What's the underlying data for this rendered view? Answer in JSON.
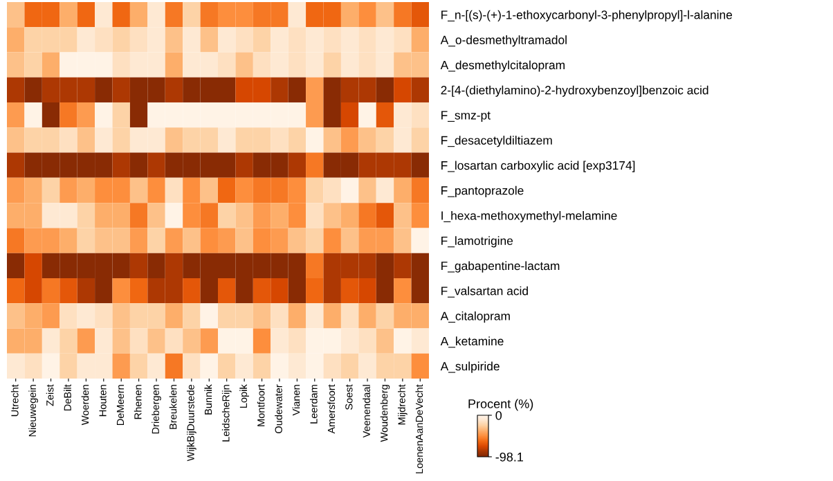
{
  "chart_data": {
    "type": "heatmap",
    "categories": [
      "Utrecht",
      "Nieuwegein",
      "Zeist",
      "DeBilt",
      "Woerden",
      "Houten",
      "DeMeern",
      "Rhenen",
      "Driebergen",
      "Breukelen",
      "WijkBijDuurstede",
      "Bunnik",
      "LeidscheRijn",
      "Lopik",
      "Montfoort",
      "Oudewater",
      "Vianen",
      "Leerdam",
      "Amersfoort",
      "Soest",
      "Veenendaal",
      "Woudenberg",
      "Mijdrecht",
      "LoenenAanDeVecht"
    ],
    "y_categories": [
      "F_n-[(s)-(+)-1-ethoxycarbonyl-3-phenylpropyl]-l-alanine",
      "A_o-desmethyltramadol",
      "A_desmethylcitalopram",
      "2-[4-(diethylamino)-2-hydroxybenzoyl]benzoic acid",
      "F_smz-pt",
      "F_desacetyldiltiazem",
      "F_losartan carboxylic acid [exp3174]",
      "F_pantoprazole",
      "I_hexa-methoxymethyl-melamine",
      "F_lamotrigine",
      "F_gabapentine-lactam",
      "F_valsartan acid",
      "A_citalopram",
      "A_ketamine",
      "A_sulpiride"
    ],
    "cells": [
      [
        -30,
        -62,
        -62,
        -37,
        -62,
        -10,
        -62,
        -37,
        -10,
        -56,
        -23,
        -56,
        -49,
        -49,
        -56,
        -56,
        -10,
        -62,
        -62,
        -37,
        -49,
        -30,
        -56,
        -68
      ],
      [
        -37,
        -23,
        -23,
        -23,
        -10,
        -16,
        -23,
        -16,
        -10,
        -30,
        -10,
        -30,
        -10,
        -16,
        -23,
        -10,
        -16,
        -10,
        -16,
        -10,
        -16,
        -10,
        -16,
        -37
      ],
      [
        -30,
        -23,
        -37,
        -2,
        -2,
        -2,
        -16,
        -10,
        -10,
        -37,
        -10,
        -10,
        -16,
        -30,
        -16,
        -10,
        -16,
        -10,
        -23,
        -10,
        -16,
        -10,
        -30,
        -30
      ],
      [
        -84,
        -95,
        -84,
        -84,
        -84,
        -95,
        -84,
        -95,
        -95,
        -84,
        -95,
        -95,
        -95,
        -74,
        -74,
        -84,
        -95,
        -44,
        -95,
        -84,
        -84,
        -95,
        -74,
        -84
      ],
      [
        -44,
        -2,
        -95,
        -56,
        -44,
        -2,
        -23,
        -95,
        -2,
        -2,
        -2,
        -2,
        -2,
        -2,
        -2,
        -2,
        -2,
        -44,
        -95,
        -74,
        -2,
        -68,
        -10,
        -16
      ],
      [
        -30,
        -23,
        -23,
        -16,
        -30,
        -10,
        -23,
        -10,
        -10,
        -30,
        -23,
        -23,
        -10,
        -23,
        -23,
        -16,
        -23,
        -2,
        -30,
        -44,
        -30,
        -23,
        -10,
        -23
      ],
      [
        -84,
        -95,
        -95,
        -95,
        -95,
        -95,
        -84,
        -95,
        -84,
        -95,
        -95,
        -95,
        -95,
        -84,
        -95,
        -95,
        -84,
        -56,
        -95,
        -95,
        -84,
        -84,
        -84,
        -95
      ],
      [
        -44,
        -37,
        -23,
        -44,
        -37,
        -49,
        -49,
        -30,
        -49,
        -16,
        -49,
        -30,
        -62,
        -49,
        -56,
        -56,
        -49,
        -23,
        -16,
        -2,
        -30,
        -10,
        -37,
        -56
      ],
      [
        -37,
        -37,
        -10,
        -10,
        -23,
        -37,
        -37,
        -56,
        -30,
        -2,
        -49,
        -56,
        -23,
        -30,
        -44,
        -37,
        -49,
        -16,
        -30,
        -37,
        -56,
        -68,
        -30,
        -49
      ],
      [
        -56,
        -44,
        -44,
        -37,
        -23,
        -30,
        -30,
        -44,
        -23,
        -44,
        -30,
        -49,
        -44,
        -30,
        -49,
        -44,
        -30,
        -23,
        -49,
        -30,
        -44,
        -44,
        -30,
        -2
      ],
      [
        -95,
        -74,
        -95,
        -95,
        -95,
        -95,
        -95,
        -84,
        -95,
        -84,
        -95,
        -95,
        -95,
        -95,
        -95,
        -95,
        -95,
        -56,
        -84,
        -84,
        -84,
        -95,
        -84,
        -95
      ],
      [
        -62,
        -74,
        -56,
        -68,
        -84,
        -95,
        -49,
        -62,
        -84,
        -84,
        -68,
        -95,
        -68,
        -95,
        -68,
        -74,
        -95,
        -62,
        -84,
        -68,
        -74,
        -95,
        -49,
        -95
      ],
      [
        -30,
        -37,
        -44,
        -16,
        -10,
        -16,
        -30,
        -23,
        -23,
        -37,
        -23,
        -2,
        -23,
        -23,
        -30,
        -16,
        -37,
        -10,
        -37,
        -16,
        -37,
        -23,
        -37,
        -37
      ],
      [
        -37,
        -37,
        -10,
        -23,
        -44,
        -10,
        -30,
        -16,
        -30,
        -16,
        -30,
        -44,
        -2,
        -2,
        -49,
        -10,
        -16,
        -2,
        -2,
        -10,
        -16,
        -30,
        -2,
        -10
      ],
      [
        -10,
        -16,
        -2,
        -23,
        -10,
        -10,
        -44,
        -23,
        -10,
        -56,
        -16,
        -2,
        -23,
        -10,
        -23,
        -2,
        -10,
        -2,
        -16,
        -23,
        -10,
        -23,
        -23,
        -49
      ]
    ],
    "clabel": "Procent (%)",
    "clim": [
      0,
      -98.1
    ],
    "cticks": [
      0,
      -98.1
    ]
  }
}
